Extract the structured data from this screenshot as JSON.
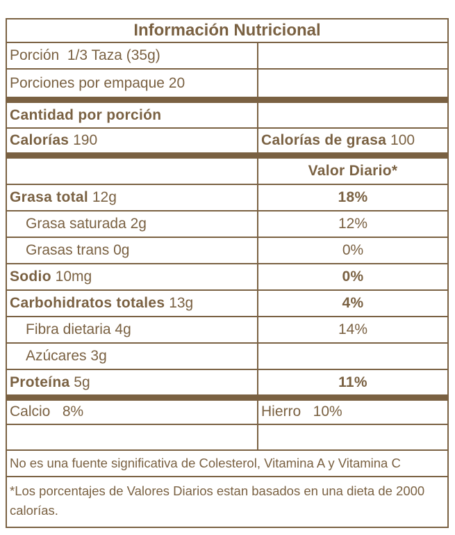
{
  "title": "Información Nutricional",
  "serving": "Porción  1/3 Taza (35g)",
  "servings_per_container": "Porciones por empaque 20",
  "amount_per_serving": "Cantidad por porción",
  "calories": {
    "label": "Calorías",
    "value": "190"
  },
  "calories_fat": {
    "label": "Calorías de grasa",
    "value": "100"
  },
  "daily_value_header": "Valor Diario*",
  "nutrients": [
    {
      "label": "Grasa total",
      "amount": "12g",
      "dv": "18%",
      "bold": true
    },
    {
      "label": "Grasa saturada",
      "amount": "2g",
      "dv": "12%",
      "bold": false
    },
    {
      "label": "Grasas trans",
      "amount": "0g",
      "dv": "0%",
      "bold": false
    },
    {
      "label": "Sodio",
      "amount": "10mg",
      "dv": "0%",
      "bold": true
    },
    {
      "label": "Carbohidratos totales",
      "amount": "13g",
      "dv": "4%",
      "bold": true
    },
    {
      "label": "Fibra dietaria",
      "amount": "4g",
      "dv": "14%",
      "bold": false
    },
    {
      "label": "Azúcares",
      "amount": "3g",
      "dv": "",
      "bold": false
    },
    {
      "label": "Proteína",
      "amount": "5g",
      "dv": "11%",
      "bold": true
    }
  ],
  "calcium": "Calcio   8%",
  "iron": "Hierro   10%",
  "note": "No es una fuente significativa de Colesterol, Vitamina A y Vitamina C",
  "footnote": "*Los porcentajes de Valores Diarios estan basados en una dieta de 2000 calorías.",
  "colors": {
    "text": "#7a6142",
    "border": "#7a6142"
  }
}
